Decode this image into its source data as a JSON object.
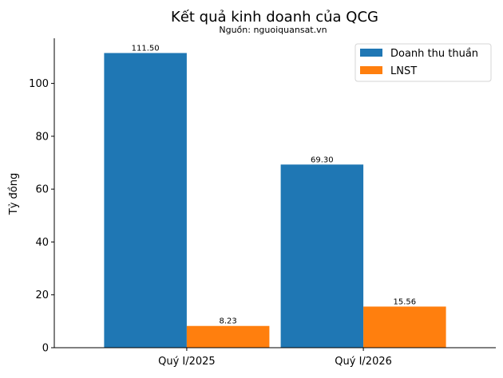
{
  "chart_data": {
    "type": "bar",
    "title": "Kết quả kinh doanh của QCG",
    "subtitle": "Nguồn: nguoiquansat.vn",
    "xlabel": "",
    "ylabel": "Tỷ đồng",
    "categories": [
      "Quý I/2025",
      "Quý I/2026"
    ],
    "series": [
      {
        "name": "Doanh thu thuần",
        "values": [
          111.5,
          69.3
        ],
        "labels": [
          "111.50",
          "69.30"
        ],
        "color": "#1f77b4"
      },
      {
        "name": "LNST",
        "values": [
          8.23,
          15.56
        ],
        "labels": [
          "8.23",
          "15.56"
        ],
        "color": "#ff7f0e"
      }
    ],
    "ylim": [
      0,
      117.075
    ],
    "yticks": [
      0,
      20,
      40,
      60,
      80,
      100
    ],
    "grid": false,
    "legend_position": "top-right"
  }
}
